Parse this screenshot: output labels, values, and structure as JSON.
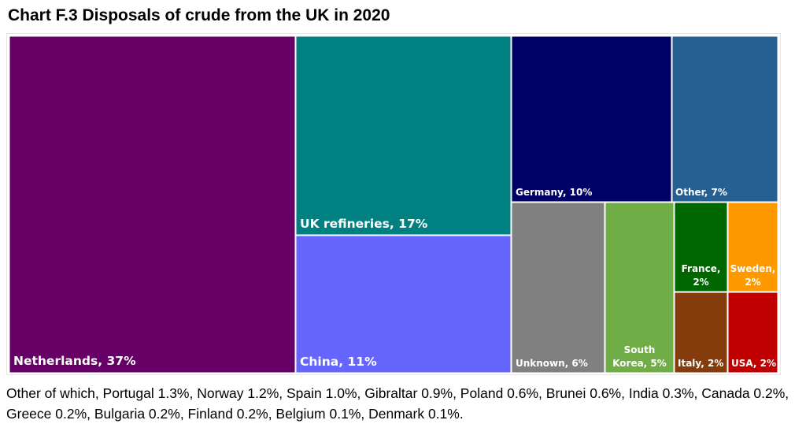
{
  "title": "Chart F.3 Disposals of crude from the UK in 2020",
  "footnote": "Other of which, Portugal 1.3%, Norway 1.2%, Spain 1.0%, Gibraltar 0.9%, Poland 0.6%, Brunei 0.6%, India 0.3%, Canada 0.2%, Greece 0.2%, Bulgaria 0.2%, Finland 0.2%, Belgium 0.1%, Denmark 0.1%.",
  "chart_data": {
    "type": "treemap",
    "title": "Chart F.3 Disposals of crude from the UK in 2020",
    "unit": "%",
    "legend": "none",
    "items": [
      {
        "name": "Netherlands",
        "value": 37,
        "label": "Netherlands, 37%",
        "color": "#660066"
      },
      {
        "name": "UK refineries",
        "value": 17,
        "label": "UK refineries, 17%",
        "color": "#008080"
      },
      {
        "name": "China",
        "value": 11,
        "label": "China, 11%",
        "color": "#6666FF"
      },
      {
        "name": "Germany",
        "value": 10,
        "label": "Germany, 10%",
        "color": "#000066"
      },
      {
        "name": "Other",
        "value": 7,
        "label": "Other, 7%",
        "color": "#265F92"
      },
      {
        "name": "Unknown",
        "value": 6,
        "label": "Unknown, 6%",
        "color": "#808080"
      },
      {
        "name": "South Korea",
        "value": 5,
        "label": "South Korea, 5%",
        "color": "#70AD47"
      },
      {
        "name": "France",
        "value": 2,
        "label": "France, 2%",
        "color": "#006600"
      },
      {
        "name": "Sweden",
        "value": 2,
        "label": "Sweden, 2%",
        "color": "#FF9900"
      },
      {
        "name": "Italy",
        "value": 2,
        "label": "Italy, 2%",
        "color": "#843C0C"
      },
      {
        "name": "USA",
        "value": 2,
        "label": "USA, 2%",
        "color": "#C00000"
      }
    ]
  }
}
